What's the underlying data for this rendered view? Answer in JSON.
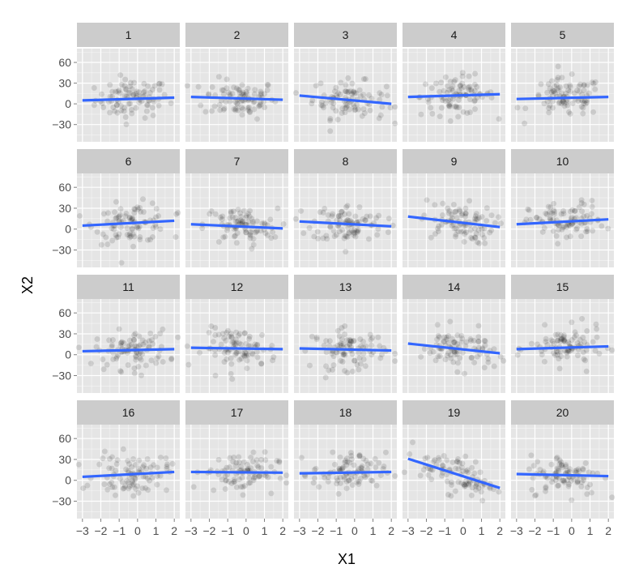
{
  "chart_data": {
    "type": "scatter",
    "facets": [
      "1",
      "2",
      "3",
      "4",
      "5",
      "6",
      "7",
      "8",
      "9",
      "10",
      "11",
      "12",
      "13",
      "14",
      "15",
      "16",
      "17",
      "18",
      "19",
      "20"
    ],
    "xlabel": "X1",
    "ylabel": "X2",
    "xlim": [
      -3.3,
      2.3
    ],
    "ylim": [
      -55,
      80
    ],
    "xticks": [
      -3,
      -2,
      -1,
      0,
      1,
      2
    ],
    "yticks": [
      -30,
      0,
      30,
      60
    ],
    "xtick_labels": [
      "−3",
      "−2",
      "−1",
      "0",
      "1",
      "2"
    ],
    "ytick_labels": [
      "−30",
      "0",
      "30",
      "60"
    ],
    "grid": true,
    "fit_lines": [
      {
        "panel": "1",
        "x": [
          -3,
          2
        ],
        "y": [
          5,
          9
        ]
      },
      {
        "panel": "2",
        "x": [
          -3,
          2
        ],
        "y": [
          10,
          6
        ]
      },
      {
        "panel": "3",
        "x": [
          -3,
          2
        ],
        "y": [
          12,
          0
        ]
      },
      {
        "panel": "4",
        "x": [
          -3,
          2
        ],
        "y": [
          10,
          14
        ]
      },
      {
        "panel": "5",
        "x": [
          -3,
          2
        ],
        "y": [
          7,
          10
        ]
      },
      {
        "panel": "6",
        "x": [
          -3,
          2
        ],
        "y": [
          5,
          12
        ]
      },
      {
        "panel": "7",
        "x": [
          -3,
          2
        ],
        "y": [
          7,
          1
        ]
      },
      {
        "panel": "8",
        "x": [
          -3,
          2
        ],
        "y": [
          11,
          4
        ]
      },
      {
        "panel": "9",
        "x": [
          -3,
          2
        ],
        "y": [
          18,
          3
        ]
      },
      {
        "panel": "10",
        "x": [
          -3,
          2
        ],
        "y": [
          7,
          14
        ]
      },
      {
        "panel": "11",
        "x": [
          -3,
          2
        ],
        "y": [
          5,
          8
        ]
      },
      {
        "panel": "12",
        "x": [
          -3,
          2
        ],
        "y": [
          10,
          8
        ]
      },
      {
        "panel": "13",
        "x": [
          -3,
          2
        ],
        "y": [
          9,
          6
        ]
      },
      {
        "panel": "14",
        "x": [
          -3,
          2
        ],
        "y": [
          16,
          2
        ]
      },
      {
        "panel": "15",
        "x": [
          -3,
          2
        ],
        "y": [
          8,
          12
        ]
      },
      {
        "panel": "16",
        "x": [
          -3,
          2
        ],
        "y": [
          5,
          12
        ]
      },
      {
        "panel": "17",
        "x": [
          -3,
          2
        ],
        "y": [
          12,
          11
        ]
      },
      {
        "panel": "18",
        "x": [
          -3,
          2
        ],
        "y": [
          10,
          12
        ]
      },
      {
        "panel": "19",
        "x": [
          -3,
          2
        ],
        "y": [
          31,
          -11
        ]
      },
      {
        "panel": "20",
        "x": [
          -3,
          2
        ],
        "y": [
          9,
          6
        ]
      }
    ],
    "point_color": "#000000",
    "point_opacity": 0.12,
    "fit_line_color": "#3366FF",
    "panel_background": "#E5E5E5",
    "strip_background": "#CCCCCC",
    "grid_color": "#FFFFFF"
  }
}
